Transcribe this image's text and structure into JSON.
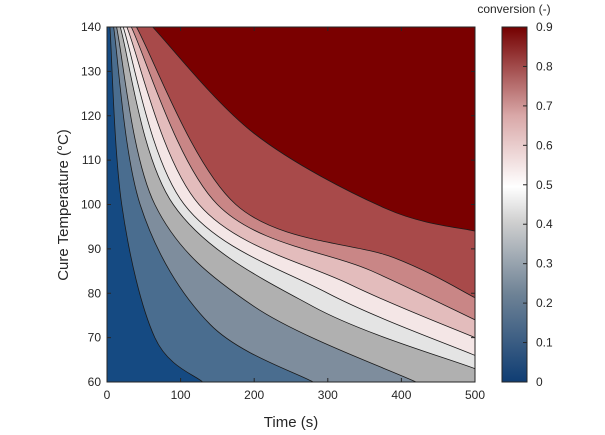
{
  "chart_data": {
    "type": "contour",
    "title": "",
    "xlabel": "Time (s)",
    "ylabel": "Cure Temperature (°C)",
    "xlim": [
      0,
      500
    ],
    "ylim": [
      60,
      140
    ],
    "x_ticks": [
      0,
      100,
      200,
      300,
      400,
      500
    ],
    "y_ticks": [
      60,
      70,
      80,
      90,
      100,
      110,
      120,
      130,
      140
    ],
    "colorbar": {
      "title": "conversion (-)",
      "range": [
        0,
        0.9
      ],
      "ticks": [
        0,
        0.1,
        0.2,
        0.3,
        0.4,
        0.5,
        0.6,
        0.7,
        0.8,
        0.9
      ]
    },
    "levels": [
      0.1,
      0.2,
      0.3,
      0.4,
      0.5,
      0.6,
      0.7,
      0.8,
      0.9
    ],
    "fill_colors": [
      "#154a82",
      "#4a6d8f",
      "#7e8d9d",
      "#b0b0b0",
      "#e4e4e4",
      "#f4e6e6",
      "#e3bcbc",
      "#c98686",
      "#a84a4a",
      "#7a0000"
    ],
    "contour_lines": [
      {
        "level": 0.1,
        "points": [
          [
            4,
            140
          ],
          [
            20,
            100
          ],
          [
            65,
            70
          ],
          [
            130,
            60
          ]
        ]
      },
      {
        "level": 0.2,
        "points": [
          [
            9,
            140
          ],
          [
            45,
            100
          ],
          [
            140,
            73
          ],
          [
            280,
            60
          ]
        ]
      },
      {
        "level": 0.3,
        "points": [
          [
            13,
            140
          ],
          [
            65,
            100
          ],
          [
            200,
            77
          ],
          [
            420,
            60
          ]
        ]
      },
      {
        "level": 0.4,
        "points": [
          [
            18,
            140
          ],
          [
            90,
            100
          ],
          [
            280,
            77
          ],
          [
            500,
            63
          ]
        ]
      },
      {
        "level": 0.5,
        "points": [
          [
            22,
            140
          ],
          [
            105,
            100
          ],
          [
            300,
            80
          ],
          [
            500,
            66
          ]
        ]
      },
      {
        "level": 0.6,
        "points": [
          [
            27,
            140
          ],
          [
            125,
            100
          ],
          [
            330,
            82
          ],
          [
            500,
            70
          ]
        ]
      },
      {
        "level": 0.7,
        "points": [
          [
            33,
            140
          ],
          [
            150,
            100
          ],
          [
            360,
            85
          ],
          [
            500,
            74
          ]
        ]
      },
      {
        "level": 0.8,
        "points": [
          [
            40,
            140
          ],
          [
            175,
            100
          ],
          [
            390,
            88
          ],
          [
            500,
            79
          ]
        ]
      },
      {
        "level": 0.9,
        "points": [
          [
            62,
            140
          ],
          [
            200,
            116
          ],
          [
            380,
            99
          ],
          [
            500,
            94
          ]
        ]
      }
    ]
  }
}
